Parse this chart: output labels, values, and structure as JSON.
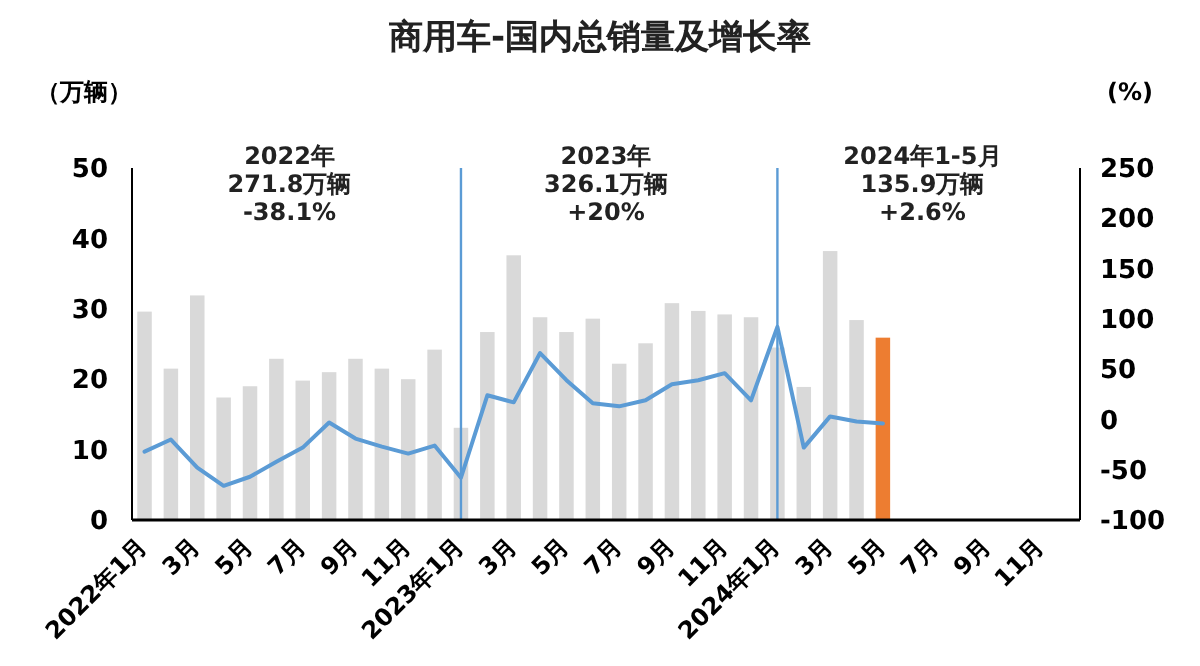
{
  "chart_data": {
    "type": "bar",
    "title": "商用车-国内总销量及增长率",
    "ylabel": "（万辆）",
    "y2label": "(%)",
    "categories": [
      "2022年1月",
      null,
      "3月",
      null,
      "5月",
      null,
      "7月",
      null,
      "9月",
      null,
      "11月",
      null,
      "2023年1月",
      null,
      "3月",
      null,
      "5月",
      null,
      "7月",
      null,
      "9月",
      null,
      "11月",
      null,
      "2024年1月",
      null,
      "3月",
      null,
      "5月",
      null,
      "7月",
      null,
      "9月",
      null,
      "11月",
      null
    ],
    "series": [
      {
        "colors": [
          "#d9d9d9",
          "#d9d9d9",
          "#d9d9d9",
          "#d9d9d9",
          "#d9d9d9",
          "#d9d9d9",
          "#d9d9d9",
          "#d9d9d9",
          "#d9d9d9",
          "#d9d9d9",
          "#d9d9d9",
          "#d9d9d9",
          "#d9d9d9",
          "#d9d9d9",
          "#d9d9d9",
          "#d9d9d9",
          "#d9d9d9",
          "#d9d9d9",
          "#d9d9d9",
          "#d9d9d9",
          "#d9d9d9",
          "#d9d9d9",
          "#d9d9d9",
          "#d9d9d9",
          "#d9d9d9",
          "#d9d9d9",
          "#d9d9d9",
          "#d9d9d9",
          "#ed7d31",
          null,
          null,
          null,
          null,
          null,
          null,
          null
        ],
        "values": [
          29.6,
          21.5,
          31.9,
          17.4,
          19.0,
          22.9,
          19.8,
          21.0,
          22.9,
          21.5,
          20.0,
          24.2,
          13.1,
          26.7,
          37.6,
          28.8,
          26.7,
          28.6,
          22.2,
          25.1,
          30.8,
          29.7,
          29.2,
          28.8,
          24.5,
          18.9,
          38.2,
          28.4,
          25.9,
          null,
          null,
          null,
          null,
          null,
          null,
          null
        ]
      },
      {
        "type": "line",
        "axis": "y2",
        "color": "#5b9bd5",
        "values": [
          -32,
          -20,
          -48,
          -66,
          -57,
          -42,
          -28,
          -3,
          -19,
          -27,
          -34,
          -26,
          -58,
          24,
          17,
          66,
          39,
          16,
          13,
          19,
          35,
          39,
          46,
          19,
          92,
          -28,
          3,
          -2,
          -4,
          null,
          null,
          null,
          null,
          null,
          null,
          null
        ]
      }
    ],
    "ylim": [
      0,
      50
    ],
    "yticks": [
      0,
      10,
      20,
      30,
      40,
      50
    ],
    "y2lim": [
      -100,
      250
    ],
    "y2ticks": [
      -100,
      -50,
      0,
      50,
      100,
      150,
      200,
      250
    ],
    "ref_lines": [
      {
        "axis": "x",
        "value": "2023年1月",
        "color": "#5b9bd5"
      },
      {
        "axis": "x",
        "value": "2024年1月",
        "color": "#5b9bd5"
      }
    ],
    "annotations": [
      "2022年\n271.8万辆\n-38.1%",
      "2023年\n326.1万辆\n+20%",
      "2024年1-5月\n135.9万辆\n+2.6%"
    ],
    "grid": false,
    "marker": "none",
    "line_style": "solid"
  }
}
